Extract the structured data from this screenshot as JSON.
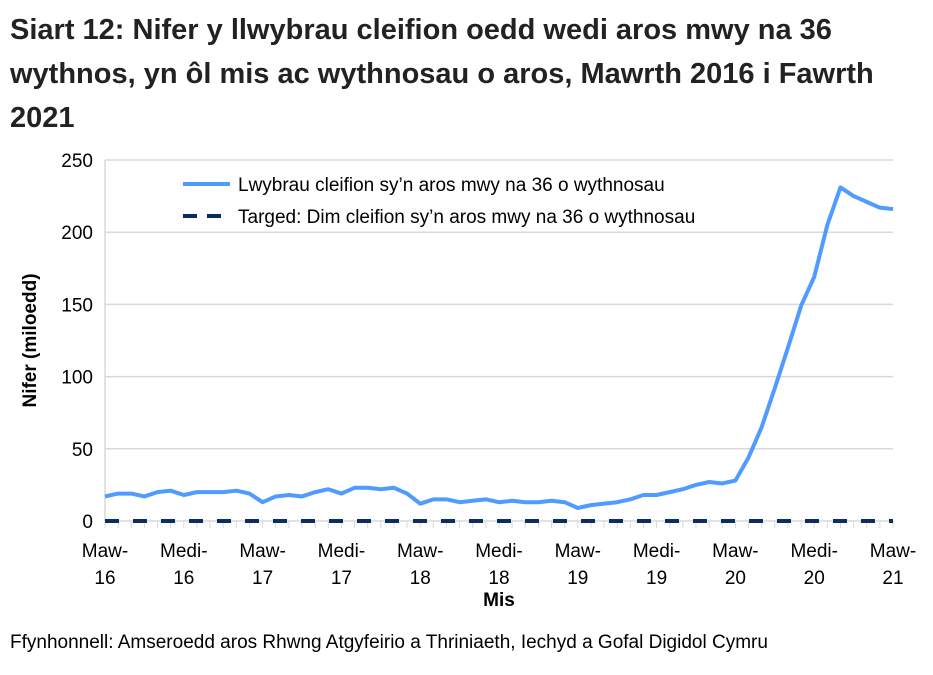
{
  "title": "Siart 12: Nifer y llwybrau cleifion oedd wedi aros mwy na 36 wythnos, yn ôl mis ac wythnosau o aros, Mawrth 2016 i Fawrth 2021",
  "source": "Ffynhonnell: Amseroedd aros Rhwng Atgyfeirio a Thriniaeth, Iechyd a Gofal Digidol Cymru",
  "chart_data": {
    "type": "line",
    "xlabel": "Mis",
    "ylabel": "Nifer (miloedd)",
    "ylim": [
      0,
      250
    ],
    "yticks": [
      0,
      50,
      100,
      150,
      200,
      250
    ],
    "grid": true,
    "legend_position": "top",
    "x_tick_labels": [
      [
        "Maw-",
        "16"
      ],
      [
        "Medi-",
        "16"
      ],
      [
        "Maw-",
        "17"
      ],
      [
        "Medi-",
        "17"
      ],
      [
        "Maw-",
        "18"
      ],
      [
        "Medi-",
        "18"
      ],
      [
        "Maw-",
        "19"
      ],
      [
        "Medi-",
        "19"
      ],
      [
        "Maw-",
        "20"
      ],
      [
        "Medi-",
        "20"
      ],
      [
        "Maw-",
        "21"
      ]
    ],
    "x_start": "2016-03",
    "x_end": "2021-03",
    "series": [
      {
        "name": "Lwybrau cleifion sy’n aros mwy na 36 o wythnosau",
        "color": "#4f9bff",
        "style": "solid",
        "values": [
          17,
          19,
          19,
          17,
          20,
          21,
          18,
          20,
          20,
          20,
          21,
          19,
          13,
          17,
          18,
          17,
          20,
          22,
          19,
          23,
          23,
          22,
          23,
          19,
          12,
          15,
          15,
          13,
          14,
          15,
          13,
          14,
          13,
          13,
          14,
          13,
          9,
          11,
          12,
          13,
          15,
          18,
          18,
          20,
          22,
          25,
          27,
          26,
          28,
          44,
          65,
          92,
          120,
          149,
          169,
          205,
          231,
          225,
          221,
          217,
          216
        ]
      },
      {
        "name": "Targed: Dim cleifion sy’n aros mwy na 36 o wythnosau",
        "color": "#0b2d64",
        "style": "dashed",
        "values": [
          0,
          0,
          0,
          0,
          0,
          0,
          0,
          0,
          0,
          0,
          0,
          0,
          0,
          0,
          0,
          0,
          0,
          0,
          0,
          0,
          0,
          0,
          0,
          0,
          0,
          0,
          0,
          0,
          0,
          0,
          0,
          0,
          0,
          0,
          0,
          0,
          0,
          0,
          0,
          0,
          0,
          0,
          0,
          0,
          0,
          0,
          0,
          0,
          0,
          0,
          0,
          0,
          0,
          0,
          0,
          0,
          0,
          0,
          0,
          0,
          0
        ]
      }
    ]
  }
}
